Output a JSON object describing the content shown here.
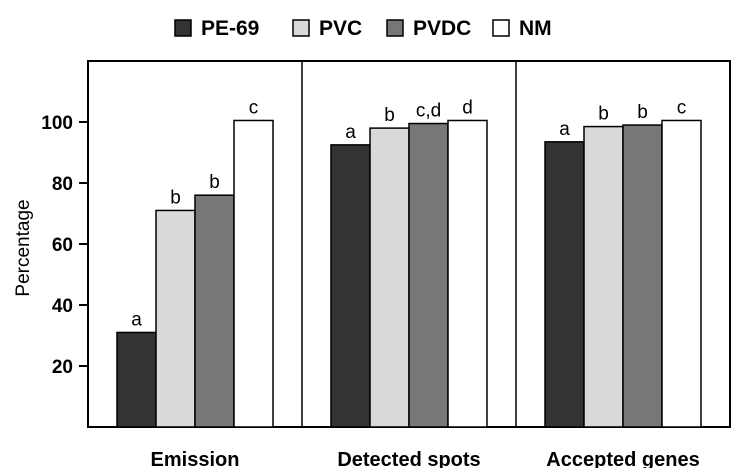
{
  "chart_data": {
    "type": "bar",
    "title": "",
    "xlabel": "",
    "ylabel": "Percentage",
    "ylim": [
      0,
      120
    ],
    "yticks": [
      20,
      40,
      60,
      80,
      100
    ],
    "categories": [
      "Emission",
      "Detected spots",
      "Accepted genes"
    ],
    "legend_position": "top",
    "series": [
      {
        "name": "PE-69",
        "color": "#333333",
        "values": [
          31,
          92.5,
          93.5
        ],
        "labels": [
          "a",
          "a",
          "a"
        ]
      },
      {
        "name": "PVC",
        "color": "#d9d9d9",
        "values": [
          71,
          98,
          98.5
        ],
        "labels": [
          "b",
          "b",
          "b"
        ]
      },
      {
        "name": "PVDC",
        "color": "#777777",
        "values": [
          76,
          99.5,
          99
        ],
        "labels": [
          "b",
          "c,d",
          "b"
        ]
      },
      {
        "name": "NM",
        "color": "#ffffff",
        "values": [
          100.5,
          100.5,
          100.5
        ],
        "labels": [
          "c",
          "d",
          "c"
        ]
      }
    ]
  }
}
